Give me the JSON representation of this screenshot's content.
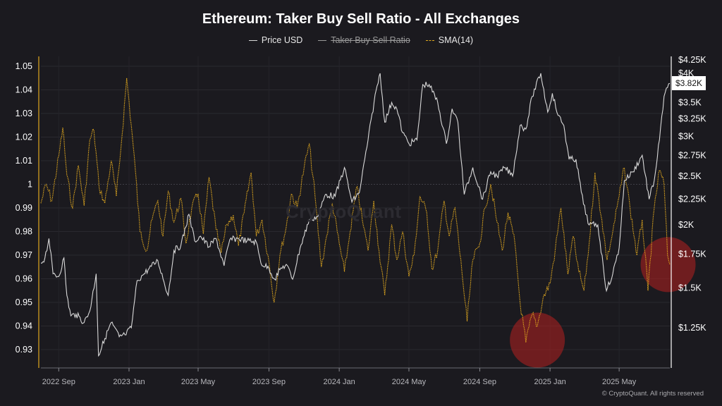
{
  "title": "Ethereum: Taker Buy Sell Ratio - All Exchanges",
  "legend": [
    {
      "label": "Price USD",
      "color": "#d9d9d9",
      "enabled": true
    },
    {
      "label": "Taker Buy Sell Ratio",
      "color": "#9a9a9a",
      "enabled": false
    },
    {
      "label": "SMA(14)",
      "color": "#e0a81f",
      "enabled": true
    }
  ],
  "watermark": "CryptoQuant",
  "credit": "© CryptoQuant. All rights reserved",
  "current_price_label": "$3.82K",
  "chart_data": {
    "type": "line",
    "title": "Ethereum: Taker Buy Sell Ratio - All Exchanges",
    "x_tick_labels": [
      "2022 Sep",
      "2023 Jan",
      "2023 May",
      "2023 Sep",
      "2024 Jan",
      "2024 May",
      "2024 Sep",
      "2025 Jan",
      "2025 May"
    ],
    "left_axis": {
      "ticks": [
        "1.05",
        "1.04",
        "1.03",
        "1.02",
        "1.01",
        "1",
        "0.99",
        "0.98",
        "0.97",
        "0.96",
        "0.95",
        "0.94",
        "0.93"
      ],
      "range": [
        0.927,
        1.053
      ]
    },
    "right_axis": {
      "ticks": [
        "$4.25K",
        "$4K",
        "$3.5K",
        "$3.25K",
        "$3K",
        "$2.75K",
        "$2.5K",
        "$2.25K",
        "$2K",
        "$1.75K",
        "$1.5K",
        "$1.25K"
      ],
      "scale": "log"
    },
    "grid": true,
    "x_range": [
      "2022-08-01",
      "2025-07-28"
    ],
    "series": [
      {
        "name": "SMA(14)",
        "axis": "left",
        "color": "#e0a81f",
        "points": [
          [
            "2022-08-01",
            0.992
          ],
          [
            "2022-08-10",
            1.0
          ],
          [
            "2022-08-20",
            0.993
          ],
          [
            "2022-09-01",
            1.012
          ],
          [
            "2022-09-08",
            1.024
          ],
          [
            "2022-09-15",
            1.004
          ],
          [
            "2022-09-25",
            0.99
          ],
          [
            "2022-10-05",
            1.008
          ],
          [
            "2022-10-15",
            0.991
          ],
          [
            "2022-10-25",
            1.019
          ],
          [
            "2022-11-01",
            1.023
          ],
          [
            "2022-11-10",
            0.999
          ],
          [
            "2022-11-20",
            0.992
          ],
          [
            "2022-12-01",
            1.01
          ],
          [
            "2022-12-10",
            0.995
          ],
          [
            "2022-12-20",
            1.021
          ],
          [
            "2022-12-28",
            1.045
          ],
          [
            "2023-01-05",
            1.025
          ],
          [
            "2023-01-12",
            1.006
          ],
          [
            "2023-01-20",
            0.98
          ],
          [
            "2023-02-01",
            0.972
          ],
          [
            "2023-02-10",
            0.985
          ],
          [
            "2023-02-20",
            0.993
          ],
          [
            "2023-03-01",
            0.978
          ],
          [
            "2023-03-10",
            0.997
          ],
          [
            "2023-03-20",
            0.984
          ],
          [
            "2023-04-01",
            0.994
          ],
          [
            "2023-04-10",
            0.975
          ],
          [
            "2023-04-20",
            0.99
          ],
          [
            "2023-05-01",
            0.996
          ],
          [
            "2023-05-10",
            0.979
          ],
          [
            "2023-05-20",
            1.003
          ],
          [
            "2023-06-01",
            0.981
          ],
          [
            "2023-06-10",
            0.971
          ],
          [
            "2023-06-20",
            0.983
          ],
          [
            "2023-07-01",
            0.987
          ],
          [
            "2023-07-10",
            0.974
          ],
          [
            "2023-07-20",
            0.988
          ],
          [
            "2023-08-01",
            1.005
          ],
          [
            "2023-08-10",
            0.978
          ],
          [
            "2023-08-20",
            0.985
          ],
          [
            "2023-09-01",
            0.967
          ],
          [
            "2023-09-10",
            0.95
          ],
          [
            "2023-09-20",
            0.97
          ],
          [
            "2023-10-01",
            0.982
          ],
          [
            "2023-10-10",
            0.996
          ],
          [
            "2023-10-20",
            0.99
          ],
          [
            "2023-11-01",
            1.007
          ],
          [
            "2023-11-10",
            1.017
          ],
          [
            "2023-11-20",
            0.995
          ],
          [
            "2023-12-01",
            0.965
          ],
          [
            "2023-12-10",
            0.978
          ],
          [
            "2023-12-20",
            0.992
          ],
          [
            "2024-01-01",
            0.975
          ],
          [
            "2024-01-10",
            0.963
          ],
          [
            "2024-01-20",
            0.98
          ],
          [
            "2024-02-01",
            0.999
          ],
          [
            "2024-02-10",
            0.985
          ],
          [
            "2024-02-20",
            0.972
          ],
          [
            "2024-03-01",
            0.993
          ],
          [
            "2024-03-10",
            0.972
          ],
          [
            "2024-03-20",
            0.953
          ],
          [
            "2024-04-01",
            0.983
          ],
          [
            "2024-04-10",
            0.968
          ],
          [
            "2024-04-20",
            0.98
          ],
          [
            "2024-05-01",
            0.961
          ],
          [
            "2024-05-10",
            0.97
          ],
          [
            "2024-05-20",
            0.995
          ],
          [
            "2024-06-01",
            0.988
          ],
          [
            "2024-06-10",
            0.964
          ],
          [
            "2024-06-20",
            0.972
          ],
          [
            "2024-07-01",
            0.993
          ],
          [
            "2024-07-10",
            0.978
          ],
          [
            "2024-07-20",
            0.99
          ],
          [
            "2024-08-01",
            0.963
          ],
          [
            "2024-08-10",
            0.942
          ],
          [
            "2024-08-20",
            0.968
          ],
          [
            "2024-09-01",
            0.975
          ],
          [
            "2024-09-10",
            0.99
          ],
          [
            "2024-09-20",
            1.0
          ],
          [
            "2024-10-01",
            0.984
          ],
          [
            "2024-10-10",
            0.972
          ],
          [
            "2024-10-20",
            0.988
          ],
          [
            "2024-11-01",
            0.975
          ],
          [
            "2024-11-10",
            0.95
          ],
          [
            "2024-11-20",
            0.933
          ],
          [
            "2024-12-01",
            0.945
          ],
          [
            "2024-12-10",
            0.94
          ],
          [
            "2024-12-20",
            0.952
          ],
          [
            "2025-01-01",
            0.958
          ],
          [
            "2025-01-10",
            0.972
          ],
          [
            "2025-01-20",
            0.99
          ],
          [
            "2025-02-01",
            0.962
          ],
          [
            "2025-02-10",
            0.978
          ],
          [
            "2025-02-20",
            0.963
          ],
          [
            "2025-03-01",
            0.955
          ],
          [
            "2025-03-10",
            0.975
          ],
          [
            "2025-03-20",
            1.005
          ],
          [
            "2025-04-01",
            0.985
          ],
          [
            "2025-04-10",
            0.968
          ],
          [
            "2025-04-20",
            0.98
          ],
          [
            "2025-05-01",
            0.995
          ],
          [
            "2025-05-10",
            1.007
          ],
          [
            "2025-05-20",
            0.99
          ],
          [
            "2025-06-01",
            0.97
          ],
          [
            "2025-06-10",
            0.985
          ],
          [
            "2025-06-20",
            0.955
          ],
          [
            "2025-07-01",
            0.99
          ],
          [
            "2025-07-10",
            1.006
          ],
          [
            "2025-07-18",
            1.0
          ],
          [
            "2025-07-24",
            0.97
          ],
          [
            "2025-07-28",
            0.966
          ]
        ]
      },
      {
        "name": "Price USD",
        "axis": "right",
        "color": "#d9d9d9",
        "points": [
          [
            "2022-08-01",
            1680
          ],
          [
            "2022-08-08",
            1720
          ],
          [
            "2022-08-15",
            1880
          ],
          [
            "2022-08-22",
            1600
          ],
          [
            "2022-09-01",
            1580
          ],
          [
            "2022-09-10",
            1720
          ],
          [
            "2022-09-15",
            1450
          ],
          [
            "2022-09-22",
            1320
          ],
          [
            "2022-10-01",
            1330
          ],
          [
            "2022-10-15",
            1280
          ],
          [
            "2022-10-25",
            1350
          ],
          [
            "2022-11-05",
            1600
          ],
          [
            "2022-11-09",
            1100
          ],
          [
            "2022-11-20",
            1190
          ],
          [
            "2022-12-01",
            1280
          ],
          [
            "2022-12-15",
            1200
          ],
          [
            "2022-12-25",
            1210
          ],
          [
            "2023-01-05",
            1250
          ],
          [
            "2023-01-15",
            1550
          ],
          [
            "2023-01-25",
            1590
          ],
          [
            "2023-02-05",
            1640
          ],
          [
            "2023-02-20",
            1700
          ],
          [
            "2023-03-10",
            1450
          ],
          [
            "2023-03-20",
            1780
          ],
          [
            "2023-04-01",
            1820
          ],
          [
            "2023-04-15",
            2100
          ],
          [
            "2023-04-25",
            1860
          ],
          [
            "2023-05-05",
            1900
          ],
          [
            "2023-05-20",
            1810
          ],
          [
            "2023-06-01",
            1880
          ],
          [
            "2023-06-15",
            1660
          ],
          [
            "2023-06-25",
            1870
          ],
          [
            "2023-07-10",
            1880
          ],
          [
            "2023-07-25",
            1860
          ],
          [
            "2023-08-10",
            1850
          ],
          [
            "2023-08-18",
            1680
          ],
          [
            "2023-09-01",
            1640
          ],
          [
            "2023-09-11",
            1560
          ],
          [
            "2023-09-20",
            1630
          ],
          [
            "2023-10-01",
            1670
          ],
          [
            "2023-10-12",
            1560
          ],
          [
            "2023-10-25",
            1800
          ],
          [
            "2023-11-10",
            2050
          ],
          [
            "2023-11-25",
            2080
          ],
          [
            "2023-12-08",
            2300
          ],
          [
            "2023-12-25",
            2280
          ],
          [
            "2024-01-10",
            2600
          ],
          [
            "2024-01-23",
            2220
          ],
          [
            "2024-02-05",
            2320
          ],
          [
            "2024-02-20",
            2950
          ],
          [
            "2024-03-05",
            3700
          ],
          [
            "2024-03-12",
            4000
          ],
          [
            "2024-03-20",
            3200
          ],
          [
            "2024-04-01",
            3500
          ],
          [
            "2024-04-10",
            3400
          ],
          [
            "2024-04-20",
            3050
          ],
          [
            "2024-05-01",
            2900
          ],
          [
            "2024-05-15",
            2950
          ],
          [
            "2024-05-25",
            3800
          ],
          [
            "2024-06-05",
            3800
          ],
          [
            "2024-06-20",
            3500
          ],
          [
            "2024-07-05",
            2900
          ],
          [
            "2024-07-15",
            3400
          ],
          [
            "2024-07-25",
            3200
          ],
          [
            "2024-08-05",
            2300
          ],
          [
            "2024-08-20",
            2600
          ],
          [
            "2024-09-06",
            2250
          ],
          [
            "2024-09-20",
            2550
          ],
          [
            "2024-10-01",
            2500
          ],
          [
            "2024-10-15",
            2600
          ],
          [
            "2024-10-28",
            2500
          ],
          [
            "2024-11-10",
            3150
          ],
          [
            "2024-11-20",
            3100
          ],
          [
            "2024-12-01",
            3600
          ],
          [
            "2024-12-16",
            4000
          ],
          [
            "2024-12-28",
            3350
          ],
          [
            "2025-01-05",
            3650
          ],
          [
            "2025-01-15",
            3300
          ],
          [
            "2025-01-25",
            3150
          ],
          [
            "2025-02-03",
            2700
          ],
          [
            "2025-02-15",
            2700
          ],
          [
            "2025-02-28",
            2200
          ],
          [
            "2025-03-10",
            2000
          ],
          [
            "2025-03-25",
            2000
          ],
          [
            "2025-04-09",
            1480
          ],
          [
            "2025-04-20",
            1600
          ],
          [
            "2025-05-01",
            1800
          ],
          [
            "2025-05-10",
            2450
          ],
          [
            "2025-05-25",
            2550
          ],
          [
            "2025-06-10",
            2750
          ],
          [
            "2025-06-22",
            2250
          ],
          [
            "2025-07-01",
            2450
          ],
          [
            "2025-07-10",
            2950
          ],
          [
            "2025-07-18",
            3600
          ],
          [
            "2025-07-28",
            3820
          ]
        ]
      }
    ],
    "highlights": [
      {
        "label": "low-ratio-2024-dec",
        "x": "2024-12-10",
        "y": 0.934
      },
      {
        "label": "low-ratio-2025-jul",
        "x": "2025-07-25",
        "y": 0.966
      }
    ]
  }
}
